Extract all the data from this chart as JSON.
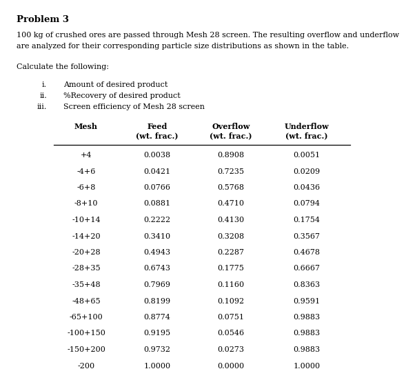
{
  "title": "Problem 3",
  "desc1": "100 kg of crushed ores are passed through Mesh 28 screen. The resulting overflow and underflow",
  "desc2": "are analyzed for their corresponding particle size distributions as shown in the table.",
  "calc_label": "Calculate the following:",
  "item_labels": [
    "i.",
    "ii.",
    "iii."
  ],
  "items": [
    "Amount of desired product",
    "%Recovery of desired product",
    "Screen efficiency of Mesh 28 screen"
  ],
  "mesh": [
    "+4",
    "-4+6",
    "-6+8",
    "-8+10",
    "-10+14",
    "-14+20",
    "-20+28",
    "-28+35",
    "-35+48",
    "-48+65",
    "-65+100",
    "-100+150",
    "-150+200",
    "-200"
  ],
  "feed": [
    "0.0038",
    "0.0421",
    "0.0766",
    "0.0881",
    "0.2222",
    "0.3410",
    "0.4943",
    "0.6743",
    "0.7969",
    "0.8199",
    "0.8774",
    "0.9195",
    "0.9732",
    "1.0000"
  ],
  "overflow": [
    "0.8908",
    "0.7235",
    "0.5768",
    "0.4710",
    "0.4130",
    "0.3208",
    "0.2287",
    "0.1775",
    "0.1160",
    "0.1092",
    "0.0751",
    "0.0546",
    "0.0273",
    "0.0000"
  ],
  "underflow": [
    "0.0051",
    "0.0209",
    "0.0436",
    "0.0794",
    "0.1754",
    "0.3567",
    "0.4678",
    "0.6667",
    "0.8363",
    "0.9591",
    "0.9883",
    "0.9883",
    "0.9883",
    "1.0000"
  ],
  "bg_color": "#ffffff",
  "text_color": "#000000",
  "font_title": 9.5,
  "font_body": 8.0,
  "font_table": 8.0
}
